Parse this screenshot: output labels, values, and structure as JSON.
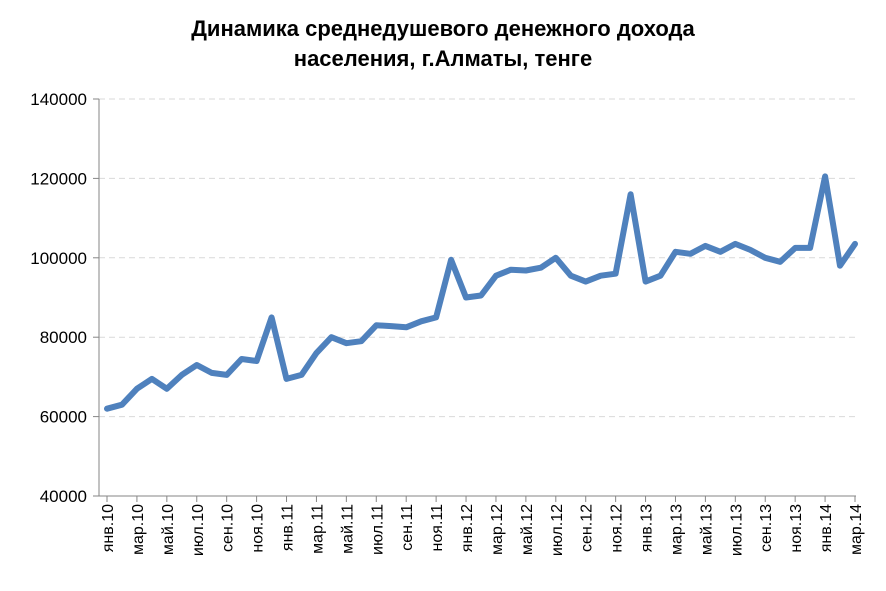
{
  "chart_data": {
    "type": "line",
    "title_line1": "Динамика среднедушевого денежного дохода",
    "title_line2": "населения, г.Алматы, тенге",
    "ylim": [
      40000,
      140000
    ],
    "yticks": [
      "40000",
      "60000",
      "80000",
      "100000",
      "120000",
      "140000"
    ],
    "ytick_values": [
      40000,
      60000,
      80000,
      100000,
      120000,
      140000
    ],
    "grid": true,
    "line_color": "#4F81BD",
    "categories": [
      "янв.10",
      "фев.10",
      "мар.10",
      "апр.10",
      "май.10",
      "июн.10",
      "июл.10",
      "авг.10",
      "сен.10",
      "окт.10",
      "ноя.10",
      "дек.10",
      "янв.11",
      "фев.11",
      "мар.11",
      "апр.11",
      "май.11",
      "июн.11",
      "июл.11",
      "авг.11",
      "сен.11",
      "окт.11",
      "ноя.11",
      "дек.11",
      "янв.12",
      "фев.12",
      "мар.12",
      "апр.12",
      "май.12",
      "июн.12",
      "июл.12",
      "авг.12",
      "сен.12",
      "окт.12",
      "ноя.12",
      "дек.12",
      "янв.13",
      "фев.13",
      "мар.13",
      "апр.13",
      "май.13",
      "июн.13",
      "июл.13",
      "авг.13",
      "сен.13",
      "окт.13",
      "ноя.13",
      "дек.13",
      "янв.14",
      "фев.14",
      "мар.14"
    ],
    "shown_labels": [
      "янв.10",
      "мар.10",
      "май.10",
      "июл.10",
      "сен.10",
      "ноя.10",
      "янв.11",
      "мар.11",
      "май.11",
      "июл.11",
      "сен.11",
      "ноя.11",
      "янв.12",
      "мар.12",
      "май.12",
      "июл.12",
      "сен.12",
      "ноя.12",
      "янв.13",
      "мар.13",
      "май.13",
      "июл.13",
      "сен.13",
      "ноя.13",
      "янв.14",
      "мар.14"
    ],
    "values": [
      62000,
      63000,
      67000,
      69500,
      67000,
      70500,
      73000,
      71000,
      70500,
      74500,
      74000,
      85000,
      69500,
      70500,
      76000,
      80000,
      78500,
      79000,
      83000,
      82800,
      82500,
      84000,
      85000,
      99500,
      90000,
      90500,
      95500,
      97000,
      96800,
      97500,
      100000,
      95500,
      94000,
      95500,
      96000,
      116000,
      94000,
      95500,
      101500,
      101000,
      103000,
      101500,
      103500,
      102000,
      100000,
      99000,
      102500,
      102500,
      120500,
      98000,
      103500
    ]
  }
}
